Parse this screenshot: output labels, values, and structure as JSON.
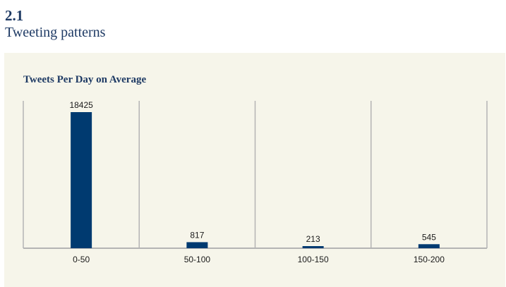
{
  "header": {
    "section_number": "2.1",
    "section_title": "Tweeting patterns"
  },
  "chart_data": {
    "type": "bar",
    "title": "Tweets Per Day on Average",
    "categories": [
      "0-50",
      "50-100",
      "100-150",
      "150-200"
    ],
    "values": [
      18425,
      817,
      213,
      545
    ],
    "xlabel": "",
    "ylabel": "",
    "ylim": [
      0,
      18425
    ],
    "grid": "vertical separators",
    "bar_color": "#003a70",
    "axis_color": "#b4b4b4"
  }
}
